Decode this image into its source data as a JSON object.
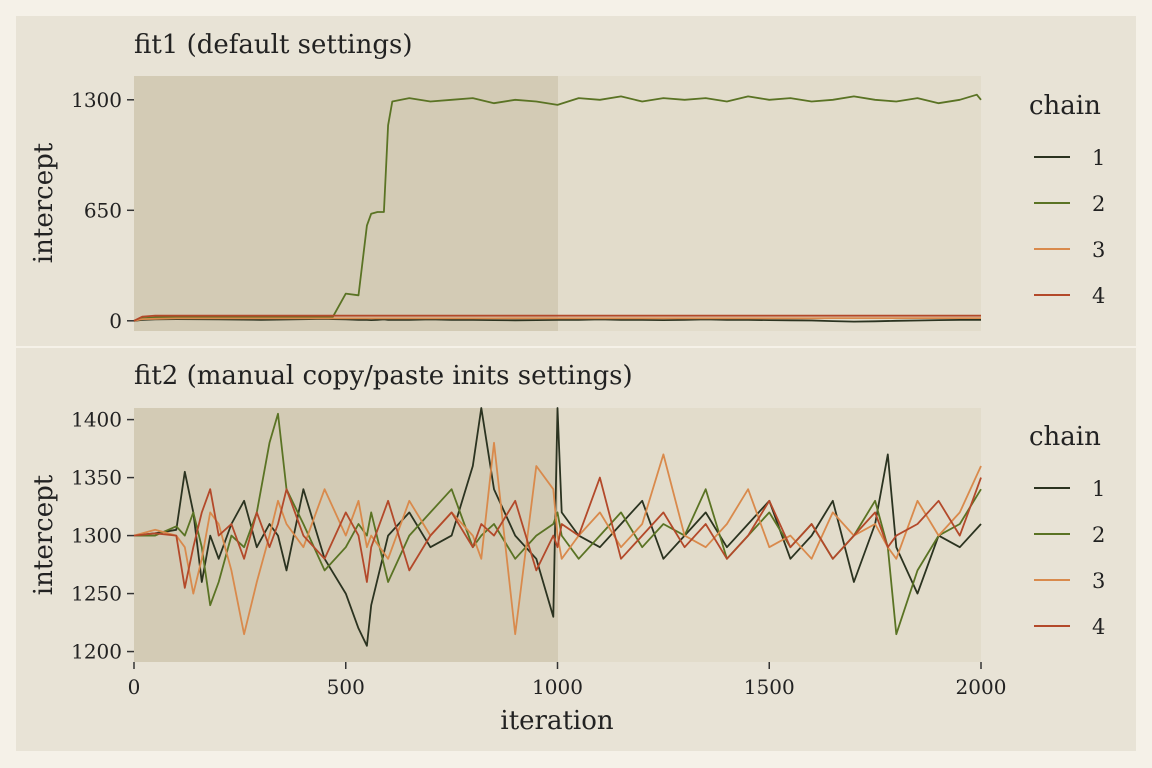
{
  "colors": {
    "page_background": "#f5f1e8",
    "panel_background": "#e8e3d6",
    "plot_background": "#e2dccb",
    "warmup_shade": "#d3cbb5",
    "chain_1": "#2b3320",
    "chain_2": "#5a7324",
    "chain_3": "#d98a4c",
    "chain_4": "#b3492a"
  },
  "x_axis": {
    "label": "iteration",
    "ticks": [
      "0",
      "500",
      "1000",
      "1500",
      "2000"
    ]
  },
  "chart_data": [
    {
      "type": "line",
      "title": "fit1 (default settings)",
      "xlabel": "",
      "ylabel": "intercept",
      "xlim": [
        0,
        2000
      ],
      "ylim": [
        -60,
        1440
      ],
      "yticks": [
        0,
        650,
        1300
      ],
      "ytick_labels": [
        "0",
        "650",
        "1300"
      ],
      "warmup_shaded_range": [
        0,
        1000
      ],
      "grid": false,
      "legend": {
        "title": "chain",
        "position": "right",
        "entries": [
          "1",
          "2",
          "3",
          "4"
        ]
      },
      "x": [
        0,
        20,
        50,
        100,
        200,
        300,
        450,
        470,
        500,
        530,
        550,
        560,
        575,
        590,
        600,
        610,
        650,
        700,
        750,
        800,
        850,
        900,
        950,
        1000,
        1050,
        1100,
        1150,
        1200,
        1250,
        1300,
        1350,
        1400,
        1450,
        1500,
        1550,
        1600,
        1650,
        1700,
        1750,
        1800,
        1850,
        1900,
        1950,
        1990,
        2000
      ],
      "series": [
        {
          "name": "1",
          "color_key": "chain_1",
          "values": [
            0,
            5,
            8,
            10,
            8,
            6,
            12,
            10,
            8,
            6,
            5,
            4,
            6,
            8,
            6,
            5,
            6,
            8,
            6,
            5,
            4,
            3,
            4,
            5,
            6,
            8,
            6,
            5,
            4,
            6,
            8,
            6,
            5,
            4,
            3,
            2,
            -2,
            -5,
            -3,
            0,
            2,
            4,
            5,
            6,
            6
          ]
        },
        {
          "name": "2",
          "color_key": "chain_2",
          "values": [
            0,
            15,
            20,
            20,
            20,
            20,
            20,
            25,
            160,
            150,
            560,
            630,
            640,
            640,
            1150,
            1290,
            1310,
            1290,
            1300,
            1310,
            1280,
            1300,
            1290,
            1270,
            1310,
            1300,
            1320,
            1290,
            1310,
            1300,
            1310,
            1290,
            1320,
            1300,
            1310,
            1290,
            1300,
            1320,
            1300,
            1290,
            1310,
            1280,
            1300,
            1330,
            1300
          ]
        },
        {
          "name": "3",
          "color_key": "chain_3",
          "values": [
            0,
            10,
            12,
            14,
            14,
            14,
            14,
            14,
            14,
            14,
            14,
            14,
            14,
            14,
            14,
            14,
            14,
            14,
            14,
            14,
            14,
            15,
            15,
            15,
            15,
            15,
            15,
            15,
            15,
            15,
            15,
            15,
            15,
            15,
            15,
            15,
            16,
            16,
            16,
            16,
            16,
            16,
            16,
            16,
            16
          ]
        },
        {
          "name": "4",
          "color_key": "chain_4",
          "values": [
            0,
            25,
            30,
            30,
            30,
            30,
            30,
            30,
            30,
            30,
            30,
            30,
            30,
            30,
            30,
            30,
            30,
            30,
            30,
            30,
            30,
            30,
            30,
            30,
            30,
            30,
            30,
            30,
            30,
            30,
            30,
            30,
            30,
            30,
            30,
            30,
            30,
            30,
            30,
            30,
            30,
            30,
            30,
            30,
            30
          ]
        }
      ]
    },
    {
      "type": "line",
      "title": "fit2 (manual copy/paste inits settings)",
      "xlabel": "iteration",
      "ylabel": "intercept",
      "xlim": [
        0,
        2000
      ],
      "ylim": [
        1191,
        1410
      ],
      "yticks": [
        1200,
        1250,
        1300,
        1350,
        1400
      ],
      "ytick_labels": [
        "1200",
        "1250",
        "1300",
        "1350",
        "1400"
      ],
      "warmup_shaded_range": [
        0,
        1000
      ],
      "grid": false,
      "legend": {
        "title": "chain",
        "position": "right",
        "entries": [
          "1",
          "2",
          "3",
          "4"
        ]
      },
      "x": [
        0,
        50,
        100,
        120,
        140,
        160,
        180,
        200,
        230,
        260,
        290,
        320,
        340,
        360,
        400,
        450,
        500,
        530,
        550,
        560,
        600,
        650,
        700,
        750,
        800,
        820,
        850,
        900,
        950,
        990,
        1000,
        1010,
        1050,
        1100,
        1150,
        1200,
        1250,
        1300,
        1350,
        1400,
        1450,
        1500,
        1550,
        1600,
        1650,
        1700,
        1750,
        1780,
        1800,
        1850,
        1900,
        1950,
        2000
      ],
      "series": [
        {
          "name": "1",
          "color_key": "chain_1",
          "values": [
            1300,
            1302,
            1305,
            1355,
            1320,
            1260,
            1300,
            1280,
            1310,
            1330,
            1290,
            1310,
            1300,
            1270,
            1340,
            1280,
            1250,
            1220,
            1205,
            1240,
            1300,
            1320,
            1290,
            1300,
            1360,
            1410,
            1340,
            1300,
            1280,
            1230,
            1410,
            1320,
            1300,
            1290,
            1310,
            1330,
            1280,
            1300,
            1320,
            1290,
            1310,
            1330,
            1280,
            1300,
            1330,
            1260,
            1310,
            1370,
            1290,
            1250,
            1300,
            1290,
            1310
          ]
        },
        {
          "name": "2",
          "color_key": "chain_2",
          "values": [
            1300,
            1300,
            1308,
            1300,
            1320,
            1290,
            1240,
            1260,
            1300,
            1290,
            1320,
            1380,
            1405,
            1340,
            1310,
            1270,
            1290,
            1310,
            1300,
            1320,
            1260,
            1300,
            1320,
            1340,
            1290,
            1300,
            1310,
            1280,
            1300,
            1310,
            1320,
            1300,
            1280,
            1300,
            1320,
            1290,
            1310,
            1300,
            1340,
            1280,
            1300,
            1320,
            1290,
            1310,
            1280,
            1300,
            1330,
            1290,
            1215,
            1270,
            1300,
            1310,
            1340
          ]
        },
        {
          "name": "3",
          "color_key": "chain_3",
          "values": [
            1300,
            1305,
            1300,
            1290,
            1250,
            1280,
            1320,
            1310,
            1270,
            1215,
            1260,
            1300,
            1330,
            1310,
            1290,
            1340,
            1300,
            1330,
            1290,
            1300,
            1280,
            1330,
            1300,
            1320,
            1300,
            1280,
            1380,
            1215,
            1360,
            1340,
            1300,
            1280,
            1300,
            1320,
            1290,
            1310,
            1370,
            1300,
            1290,
            1310,
            1340,
            1290,
            1300,
            1280,
            1320,
            1300,
            1310,
            1290,
            1280,
            1330,
            1300,
            1320,
            1360
          ]
        },
        {
          "name": "4",
          "color_key": "chain_4",
          "values": [
            1300,
            1302,
            1300,
            1255,
            1290,
            1320,
            1340,
            1300,
            1310,
            1280,
            1320,
            1290,
            1310,
            1340,
            1300,
            1280,
            1320,
            1300,
            1260,
            1290,
            1330,
            1270,
            1300,
            1320,
            1290,
            1310,
            1300,
            1330,
            1270,
            1300,
            1290,
            1310,
            1300,
            1350,
            1280,
            1300,
            1320,
            1290,
            1310,
            1280,
            1300,
            1330,
            1290,
            1310,
            1280,
            1300,
            1320,
            1290,
            1300,
            1310,
            1330,
            1300,
            1350
          ]
        }
      ]
    }
  ]
}
